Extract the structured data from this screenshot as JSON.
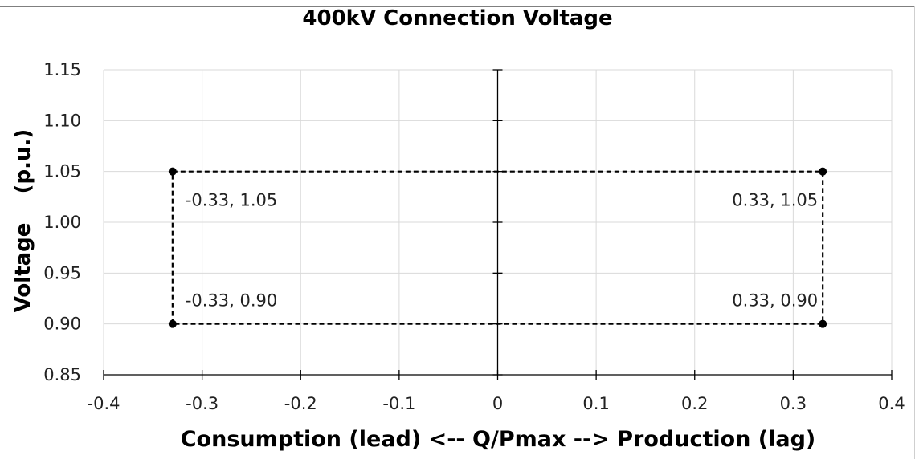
{
  "chart_data": {
    "type": "scatter",
    "title": "400kV Connection Voltage",
    "xlabel": "Consumption (lead) <-- Q/Pmax --> Production (lag)",
    "ylabel": "Voltage    (p.u.)",
    "xlim": [
      -0.4,
      0.4
    ],
    "ylim": [
      0.85,
      1.15
    ],
    "x_ticks": [
      "-0.4",
      "-0.3",
      "-0.2",
      "-0.1",
      "0",
      "0.1",
      "0.2",
      "0.3",
      "0.4"
    ],
    "y_ticks": [
      "0.85",
      "0.90",
      "0.95",
      "1.00",
      "1.05",
      "1.10",
      "1.15"
    ],
    "grid": true,
    "series": [
      {
        "style": "dashed",
        "color": "#000000",
        "closed": true,
        "points": [
          {
            "x": -0.33,
            "y": 0.9,
            "label": "-0.33, 0.90"
          },
          {
            "x": -0.33,
            "y": 1.05,
            "label": "-0.33, 1.05"
          },
          {
            "x": 0.33,
            "y": 1.05,
            "label": "0.33, 1.05"
          },
          {
            "x": 0.33,
            "y": 0.9,
            "label": "0.33, 0.90"
          }
        ]
      }
    ]
  }
}
